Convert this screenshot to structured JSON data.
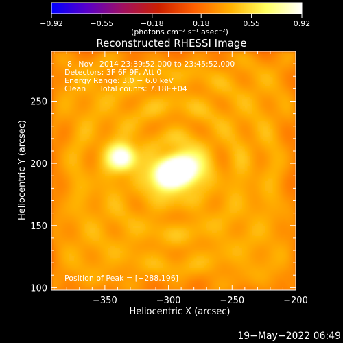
{
  "chart_data": {
    "type": "heatmap",
    "title": "Reconstructed RHESSI Image",
    "xlabel": "Heliocentric X (arcsec)",
    "ylabel": "Heliocentric Y (arcsec)",
    "xlim": [
      -392,
      -200
    ],
    "ylim": [
      98,
      290
    ],
    "x_ticks": [
      -350,
      -300,
      -250,
      -200
    ],
    "x_tick_labels": [
      "−350",
      "−300",
      "−250",
      "−200"
    ],
    "y_ticks": [
      100,
      150,
      200,
      250
    ],
    "y_tick_labels": [
      "100",
      "150",
      "200",
      "250"
    ],
    "colorbar": {
      "range": [
        -0.92,
        0.92
      ],
      "ticks": [
        -0.92,
        -0.55,
        -0.18,
        0.18,
        0.55,
        0.92
      ],
      "tick_labels": [
        "−0.92",
        "−0.55",
        "−0.18",
        "0.18",
        "0.55",
        "0.92"
      ],
      "units_label": "(photons cm⁻² s⁻¹ asec⁻²)"
    },
    "colormap_stops": [
      "#0000ff",
      "#5a00c8",
      "#a01060",
      "#cc2000",
      "#ff6000",
      "#ffb000",
      "#ffff60",
      "#ffffff"
    ],
    "sources": [
      {
        "x": -288,
        "y": 196,
        "peak": 0.92,
        "sigma": 9
      },
      {
        "x": -302,
        "y": 190,
        "peak": 0.78,
        "sigma": 8
      },
      {
        "x": -336,
        "y": 205,
        "peak": 0.72,
        "sigma": 7
      }
    ],
    "background_level": 0.38,
    "annotations": {
      "time_range": "8−Nov−2014 23:39:52.000 to 23:45:52.000",
      "detectors": "Detectors: 3F 6F 9F, Att 0",
      "energy_range": "Energy Range: 3.0 − 6.0 keV",
      "algorithm": "Clean",
      "total_counts": "Total counts: 7.18E+04",
      "peak_position": "Position of Peak = [−288,196]"
    },
    "timestamp": "19−May−2022 06:49"
  }
}
